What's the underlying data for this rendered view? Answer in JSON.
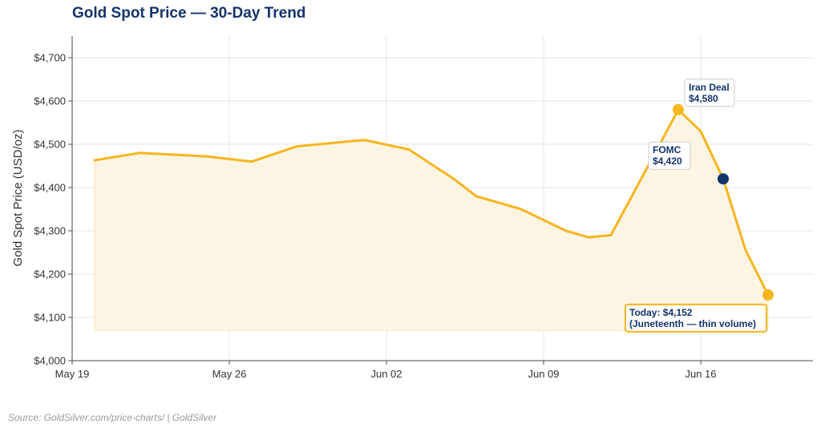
{
  "header": {
    "title": "Gold Spot Price — 30-Day Trend"
  },
  "footer": {
    "source": "Source: GoldSilver.com/price-charts/ | GoldSilver"
  },
  "colors": {
    "line": "#f7b51e",
    "fill": "#fdf5e4",
    "marker_dark": "#13336b",
    "text_dark": "#13336b",
    "grid": "#e6e6e6"
  },
  "chart_data": {
    "type": "area",
    "title": "Gold Spot Price — 30-Day Trend",
    "xlabel": "",
    "ylabel": "Gold Spot Price (USD/oz)",
    "ylim": [
      4000,
      4750
    ],
    "xlim": [
      "2025-05-19",
      "2025-06-21"
    ],
    "yticks": [
      4000,
      4100,
      4200,
      4300,
      4400,
      4500,
      4600,
      4700
    ],
    "ytick_labels": [
      "$4,000",
      "$4,100",
      "$4,200",
      "$4,300",
      "$4,400",
      "$4,500",
      "$4,600",
      "$4,700"
    ],
    "xticks": [
      "2025-05-19",
      "2025-05-26",
      "2025-06-02",
      "2025-06-09",
      "2025-06-16"
    ],
    "xtick_labels": [
      "May 19",
      "May 26",
      "Jun 02",
      "Jun 09",
      "Jun 16"
    ],
    "area_baseline": 4070,
    "grid": true,
    "series": [
      {
        "x": [
          "2025-05-20",
          "2025-05-22",
          "2025-05-25",
          "2025-05-27",
          "2025-05-29",
          "2025-06-01",
          "2025-06-03",
          "2025-06-05",
          "2025-06-06",
          "2025-06-08",
          "2025-06-10",
          "2025-06-11",
          "2025-06-12",
          "2025-06-15",
          "2025-06-16",
          "2025-06-17",
          "2025-06-18",
          "2025-06-19"
        ],
        "y": [
          4463,
          4480,
          4472,
          4460,
          4495,
          4510,
          4488,
          4420,
          4380,
          4350,
          4300,
          4285,
          4290,
          4580,
          4530,
          4420,
          4255,
          4152
        ]
      }
    ],
    "annotations": [
      {
        "x": "2025-06-15",
        "y": 4580,
        "line1": "Iran Deal",
        "line2": "$4,580",
        "marker": "gold"
      },
      {
        "x": "2025-06-17",
        "y": 4420,
        "line1": "FOMC",
        "line2": "$4,420",
        "marker": "dark"
      },
      {
        "x": "2025-06-19",
        "y": 4152,
        "line1": "Today: $4,152",
        "line2": "(Juneteenth — thin volume)",
        "marker": "gold"
      }
    ]
  }
}
